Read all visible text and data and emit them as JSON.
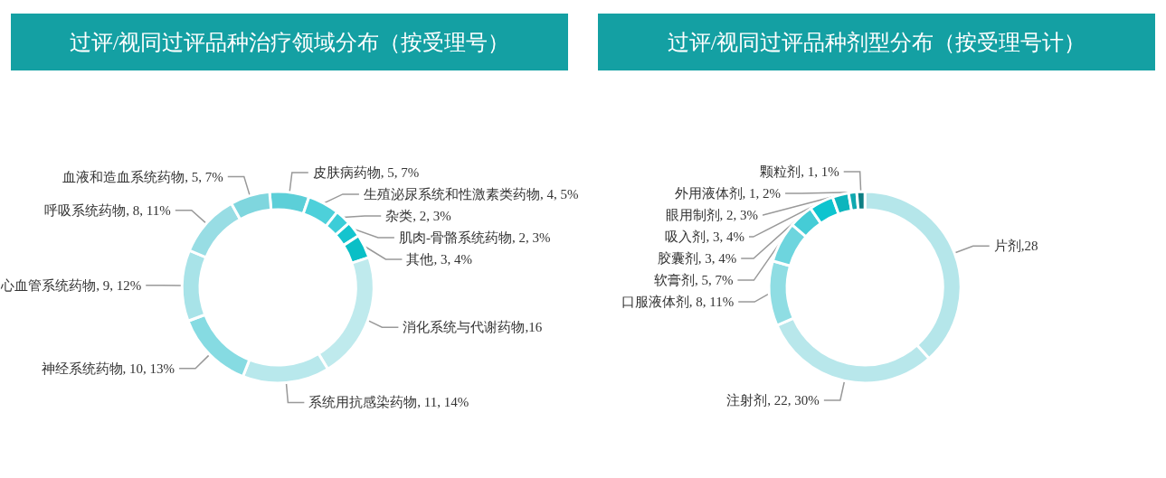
{
  "chart_data": [
    {
      "type": "donut",
      "title": "过评/视同过评品种治疗领域分布（按受理号）",
      "categories": [
        "皮肤病药物",
        "生殖泌尿系统和性激素类药物",
        "杂类",
        "肌肉-骨骼系统药物",
        "其他",
        "消化系统与代谢药物",
        "系统用抗感染药物",
        "神经系统药物",
        "心血管系统药物",
        "呼吸系统药物",
        "血液和造血系统药物"
      ],
      "values": [
        5,
        4,
        2,
        2,
        3,
        16,
        11,
        10,
        9,
        8,
        5
      ],
      "colors": [
        "#5ccfd8",
        "#4dd0da",
        "#3ccdd8",
        "#14c4ce",
        "#0abfc6",
        "#bfeaed",
        "#b8e8ec",
        "#86dbe2",
        "#a8e3e8",
        "#98dde4",
        "#7fd6de"
      ],
      "value_labels": [
        ", 5, 7%",
        ", 4, 5%",
        ", 2, 3%",
        ", 2, 3%",
        ", 3, 4%",
        ",16",
        ", 11, 14%",
        ", 10, 13%",
        ", 9, 12%",
        ", 8, 11%",
        ", 5, 7%"
      ]
    },
    {
      "type": "donut",
      "title": "过评/视同过评品种剂型分布（按受理号计）",
      "categories": [
        "片剂",
        "注射剂",
        "口服液体剂",
        "软膏剂",
        "胶囊剂",
        "吸入剂",
        "眼用制剂",
        "外用液体剂",
        "颗粒剂"
      ],
      "values": [
        28,
        22,
        8,
        5,
        3,
        3,
        2,
        1,
        1
      ],
      "colors": [
        "#b5e6ea",
        "#b8e7eb",
        "#8fdde3",
        "#6dd5de",
        "#45ccd6",
        "#0ec4cf",
        "#0db5bd",
        "#10a9b0",
        "#0c7f84"
      ],
      "value_labels": [
        ",28",
        ", 22, 30%",
        ", 8, 11%",
        ", 5, 7%",
        ", 3, 4%",
        ", 3, 4%",
        ", 2, 3%",
        ", 1, 2%",
        ", 1, 1%"
      ]
    }
  ]
}
